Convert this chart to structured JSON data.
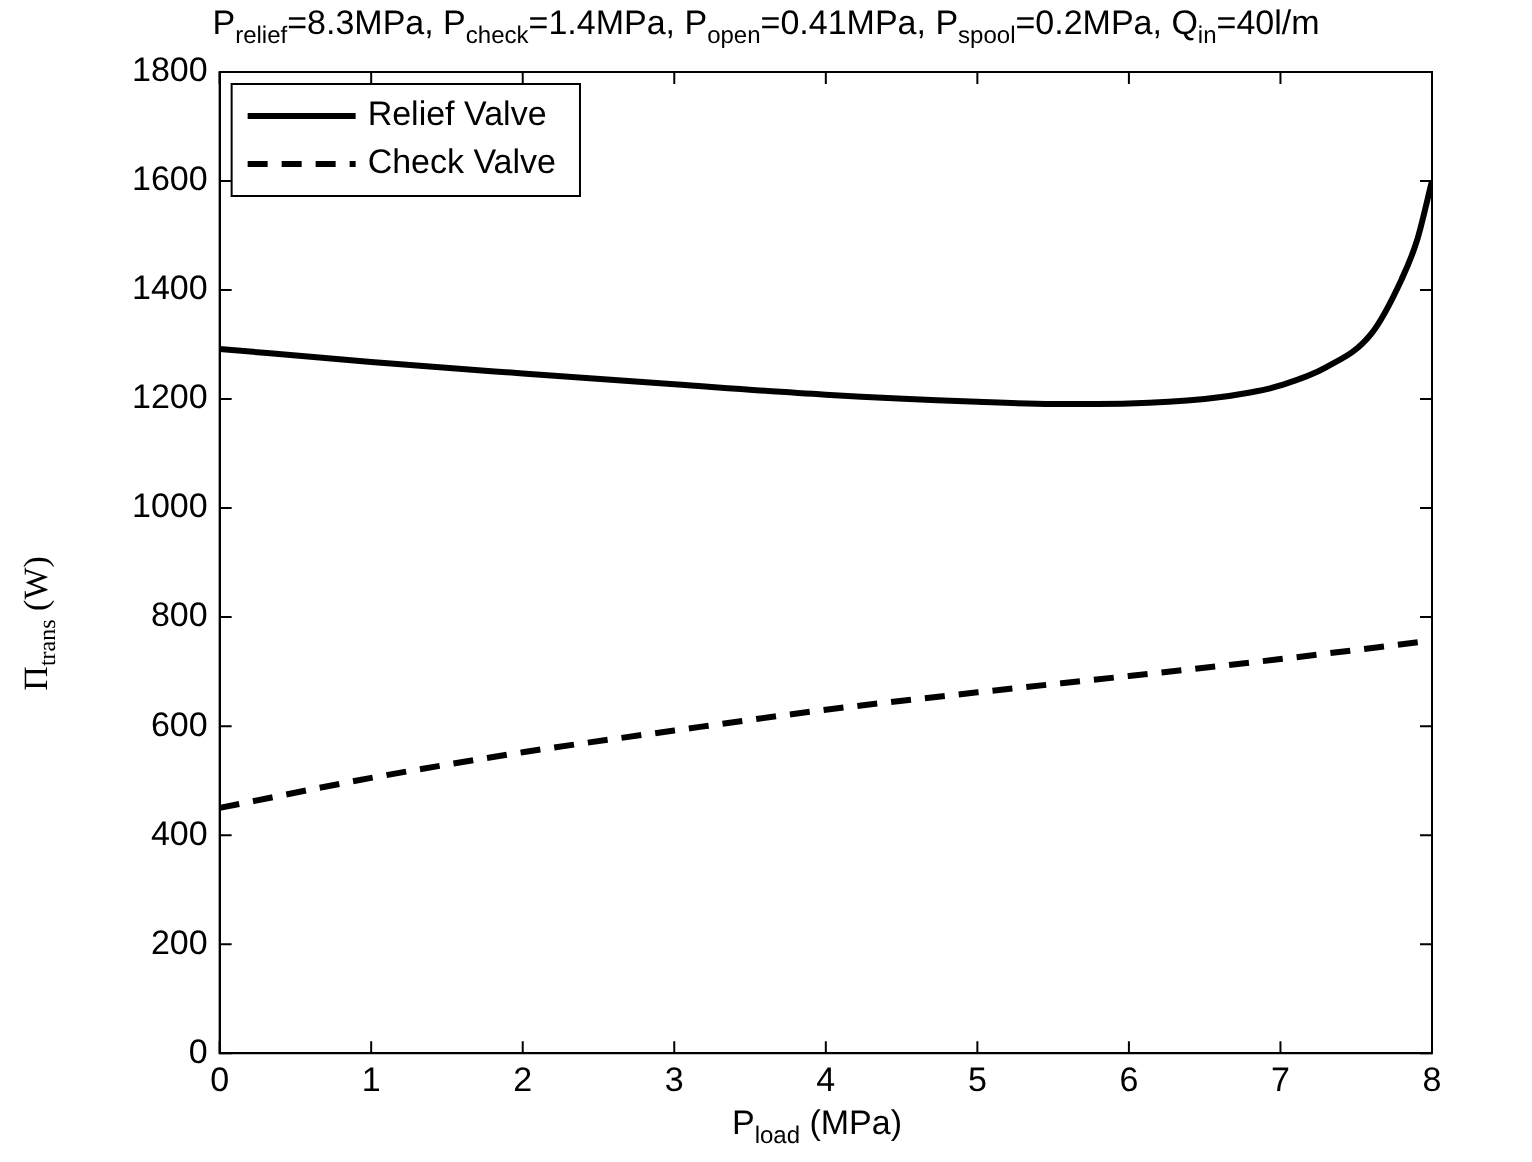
{
  "chart_data": {
    "type": "line",
    "title": "P$_{relief}$=8.3MPa, P$_{check}$=1.4MPa, P$_{open}$=0.41MPa, P$_{spool}$=0.2MPa, Q$_{in}$=40l/m",
    "xlabel": "P$_{load}$ (MPa)",
    "ylabel": "Π$_{trans}$ (W)",
    "xlim": [
      0,
      8
    ],
    "xticks": [
      0,
      1,
      2,
      3,
      4,
      5,
      6,
      7,
      8
    ],
    "ylim": [
      0,
      1800
    ],
    "yticks": [
      0,
      200,
      400,
      600,
      800,
      1000,
      1200,
      1400,
      1600,
      1800
    ],
    "grid": false,
    "legend": "top left",
    "marker": "none",
    "series": [
      {
        "name": "Relief Valve",
        "color": "#000000",
        "line_style": "solid",
        "x": [
          0,
          1,
          2,
          3,
          4,
          5,
          5.5,
          6,
          6.5,
          6.8,
          7,
          7.3,
          7.6,
          7.8,
          7.9,
          8
        ],
        "values": [
          1292,
          1268,
          1247,
          1227,
          1208,
          1195,
          1191,
          1192,
          1200,
          1212,
          1225,
          1258,
          1320,
          1420,
          1490,
          1600
        ]
      },
      {
        "name": "Check Valve",
        "color": "#000000",
        "line_style": "dashed",
        "x": [
          0,
          1,
          2,
          3,
          4,
          5,
          6,
          7,
          8
        ],
        "values": [
          450,
          505,
          552,
          592,
          630,
          662,
          692,
          723,
          757
        ]
      }
    ]
  }
}
